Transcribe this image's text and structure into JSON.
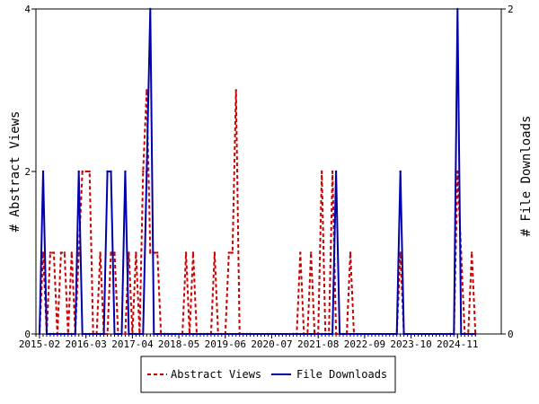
{
  "chart_data": {
    "type": "line",
    "x_unit": "month",
    "x_ticks": [
      "2015-02",
      "2016-03",
      "2017-04",
      "2018-05",
      "2019-06",
      "2020-07",
      "2021-08",
      "2022-09",
      "2023-10",
      "2024-11"
    ],
    "left_axis": {
      "label": "# Abstract Views",
      "ylim": [
        0,
        4
      ],
      "ticks": [
        "0",
        "2",
        "4"
      ]
    },
    "right_axis": {
      "label": "# File Downloads",
      "ylim": [
        0,
        2
      ],
      "ticks": [
        "0",
        "2"
      ]
    },
    "grid": false,
    "legend_position": "bottom",
    "series": [
      {
        "name": "Abstract Views",
        "axis": "left",
        "color": "#cc0000",
        "style": "dashed",
        "points": [
          [
            "2015-02",
            0
          ],
          [
            "2015-03",
            1
          ],
          [
            "2015-04",
            0
          ],
          [
            "2015-05",
            1
          ],
          [
            "2015-06",
            1
          ],
          [
            "2015-07",
            0
          ],
          [
            "2015-08",
            1
          ],
          [
            "2015-09",
            1
          ],
          [
            "2015-10",
            0
          ],
          [
            "2015-11",
            1
          ],
          [
            "2015-12",
            0
          ],
          [
            "2016-01",
            1
          ],
          [
            "2016-02",
            2
          ],
          [
            "2016-03",
            2
          ],
          [
            "2016-04",
            2
          ],
          [
            "2016-05",
            0
          ],
          [
            "2016-06",
            0
          ],
          [
            "2016-07",
            1
          ],
          [
            "2016-08",
            0
          ],
          [
            "2016-09",
            0
          ],
          [
            "2016-10",
            1
          ],
          [
            "2016-11",
            1
          ],
          [
            "2016-12",
            0
          ],
          [
            "2017-01",
            0
          ],
          [
            "2017-02",
            0
          ],
          [
            "2017-03",
            1
          ],
          [
            "2017-04",
            0
          ],
          [
            "2017-05",
            1
          ],
          [
            "2017-06",
            0
          ],
          [
            "2017-07",
            2
          ],
          [
            "2017-08",
            3
          ],
          [
            "2017-09",
            1
          ],
          [
            "2017-10",
            1
          ],
          [
            "2017-11",
            1
          ],
          [
            "2017-12",
            0
          ],
          [
            "2018-01",
            0
          ],
          [
            "2018-02",
            0
          ],
          [
            "2018-03",
            0
          ],
          [
            "2018-04",
            0
          ],
          [
            "2018-05",
            0
          ],
          [
            "2018-06",
            0
          ],
          [
            "2018-07",
            1
          ],
          [
            "2018-08",
            0
          ],
          [
            "2018-09",
            1
          ],
          [
            "2018-10",
            0
          ],
          [
            "2018-11",
            0
          ],
          [
            "2018-12",
            0
          ],
          [
            "2019-01",
            0
          ],
          [
            "2019-02",
            0
          ],
          [
            "2019-03",
            1
          ],
          [
            "2019-04",
            0
          ],
          [
            "2019-05",
            0
          ],
          [
            "2019-06",
            0
          ],
          [
            "2019-07",
            1
          ],
          [
            "2019-08",
            1
          ],
          [
            "2019-09",
            3
          ],
          [
            "2019-10",
            0
          ],
          [
            "2019-11",
            0
          ],
          [
            "2019-12",
            0
          ],
          [
            "2020-01",
            0
          ],
          [
            "2020-06",
            0
          ],
          [
            "2021-01",
            0
          ],
          [
            "2021-02",
            0
          ],
          [
            "2021-03",
            1
          ],
          [
            "2021-04",
            0
          ],
          [
            "2021-05",
            0
          ],
          [
            "2021-06",
            1
          ],
          [
            "2021-07",
            0
          ],
          [
            "2021-08",
            0
          ],
          [
            "2021-09",
            2
          ],
          [
            "2021-10",
            0
          ],
          [
            "2021-11",
            0
          ],
          [
            "2021-12",
            2
          ],
          [
            "2022-01",
            0
          ],
          [
            "2022-02",
            0
          ],
          [
            "2022-03",
            0
          ],
          [
            "2022-04",
            0
          ],
          [
            "2022-05",
            1
          ],
          [
            "2022-06",
            0
          ],
          [
            "2022-07",
            0
          ],
          [
            "2023-06",
            0
          ],
          [
            "2023-07",
            1
          ],
          [
            "2023-08",
            0
          ],
          [
            "2024-09",
            0
          ],
          [
            "2024-10",
            0
          ],
          [
            "2024-11",
            2
          ],
          [
            "2024-12",
            1
          ],
          [
            "2025-01",
            0
          ],
          [
            "2025-02",
            0
          ],
          [
            "2025-03",
            1
          ],
          [
            "2025-04",
            0
          ]
        ]
      },
      {
        "name": "File Downloads",
        "axis": "right",
        "color": "#0000aa",
        "style": "solid",
        "points": [
          [
            "2015-02",
            0
          ],
          [
            "2015-03",
            1
          ],
          [
            "2015-04",
            0
          ],
          [
            "2015-05",
            0
          ],
          [
            "2015-06",
            0
          ],
          [
            "2015-07",
            0
          ],
          [
            "2015-08",
            0
          ],
          [
            "2015-09",
            0
          ],
          [
            "2015-10",
            0
          ],
          [
            "2015-11",
            0
          ],
          [
            "2015-12",
            0
          ],
          [
            "2016-01",
            1
          ],
          [
            "2016-02",
            0
          ],
          [
            "2016-03",
            0
          ],
          [
            "2016-04",
            0
          ],
          [
            "2016-05",
            0
          ],
          [
            "2016-06",
            0
          ],
          [
            "2016-07",
            0
          ],
          [
            "2016-08",
            0
          ],
          [
            "2016-09",
            1
          ],
          [
            "2016-10",
            1
          ],
          [
            "2016-11",
            0
          ],
          [
            "2016-12",
            0
          ],
          [
            "2017-01",
            0
          ],
          [
            "2017-02",
            1
          ],
          [
            "2017-03",
            0
          ],
          [
            "2017-04",
            0
          ],
          [
            "2017-05",
            0
          ],
          [
            "2017-06",
            0
          ],
          [
            "2017-07",
            0
          ],
          [
            "2017-08",
            1
          ],
          [
            "2017-09",
            2
          ],
          [
            "2017-10",
            0
          ],
          [
            "2018-01",
            0
          ],
          [
            "2019-01",
            0
          ],
          [
            "2020-01",
            0
          ],
          [
            "2021-01",
            0
          ],
          [
            "2021-08",
            0
          ],
          [
            "2021-09",
            0
          ],
          [
            "2021-10",
            0
          ],
          [
            "2021-11",
            0
          ],
          [
            "2021-12",
            0
          ],
          [
            "2022-01",
            1
          ],
          [
            "2022-02",
            0
          ],
          [
            "2022-06",
            0
          ],
          [
            "2023-06",
            0
          ],
          [
            "2023-07",
            1
          ],
          [
            "2023-08",
            0
          ],
          [
            "2024-09",
            0
          ],
          [
            "2024-10",
            0
          ],
          [
            "2024-11",
            2
          ],
          [
            "2024-12",
            0
          ],
          [
            "2025-01",
            0
          ],
          [
            "2025-04",
            0
          ]
        ]
      }
    ]
  }
}
